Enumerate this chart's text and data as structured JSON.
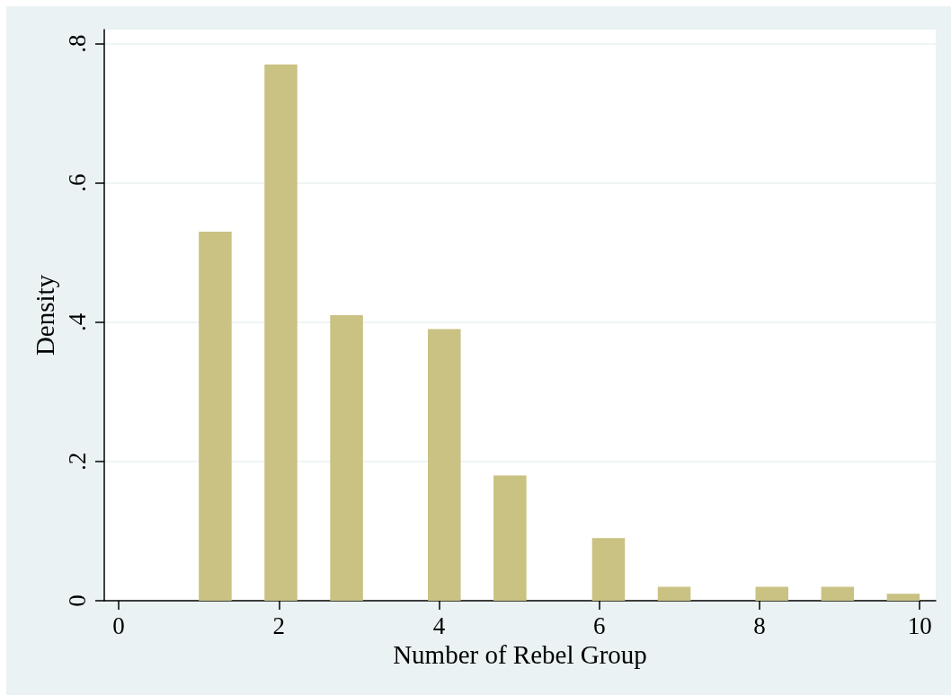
{
  "chart_data": {
    "type": "histogram",
    "xlabel": "Number of Rebel Group",
    "ylabel": "Density",
    "bins": [
      1,
      1.41,
      1.82,
      2.23,
      2.64,
      3.05,
      3.86,
      4.27,
      4.68,
      5.09,
      5.91,
      6.32,
      6.73,
      7.14,
      7.95,
      8.36,
      8.77,
      9.18,
      9.59,
      10
    ],
    "values": [
      0.53,
      0,
      0.77,
      0,
      0.41,
      0,
      0.39,
      0,
      0.18,
      0,
      0.09,
      0,
      0.02,
      0,
      0.02,
      0,
      0.02,
      0,
      0.01
    ],
    "color": "#c9c282",
    "xlim": [
      -0.18,
      10.2
    ],
    "xticks": [
      0,
      2,
      4,
      6,
      8,
      10
    ],
    "ylim": [
      0,
      0.82
    ],
    "yticks": [
      0,
      {
        "value": 0.2,
        "label": ".2"
      },
      {
        "value": 0.4,
        "label": ".4"
      },
      {
        "value": 0.6,
        "label": ".6"
      },
      {
        "value": 0.8,
        "label": ".8"
      }
    ],
    "grid": "y"
  }
}
